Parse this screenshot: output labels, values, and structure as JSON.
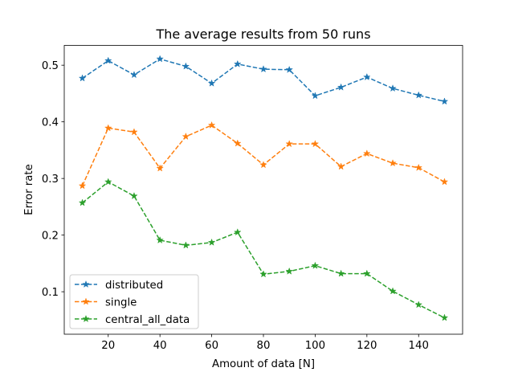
{
  "chart_data": {
    "type": "line",
    "title": "The average results from 50 runs",
    "xlabel": "Amount of data [N]",
    "ylabel": "Error rate",
    "xlim": [
      3,
      157
    ],
    "ylim": [
      0.025,
      0.535
    ],
    "x_ticks": [
      20,
      40,
      60,
      80,
      100,
      120,
      140
    ],
    "x_tick_labels": [
      "20",
      "40",
      "60",
      "80",
      "100",
      "120",
      "140"
    ],
    "y_ticks": [
      0.1,
      0.2,
      0.3,
      0.4,
      0.5
    ],
    "y_tick_labels": [
      "0.1",
      "0.2",
      "0.3",
      "0.4",
      "0.5"
    ],
    "grid": false,
    "legend_position": "lower-left",
    "x": [
      10,
      20,
      30,
      40,
      50,
      60,
      70,
      80,
      90,
      100,
      110,
      120,
      130,
      140,
      150
    ],
    "series": [
      {
        "name": "distributed",
        "color": "#1f77b4",
        "marker": "star",
        "line_style": "dashed",
        "values": [
          0.477,
          0.508,
          0.483,
          0.511,
          0.498,
          0.468,
          0.502,
          0.493,
          0.492,
          0.446,
          0.461,
          0.479,
          0.459,
          0.447,
          0.436
        ]
      },
      {
        "name": "single",
        "color": "#ff7f0e",
        "marker": "star",
        "line_style": "dashed",
        "values": [
          0.287,
          0.389,
          0.382,
          0.318,
          0.374,
          0.394,
          0.362,
          0.324,
          0.361,
          0.361,
          0.321,
          0.344,
          0.327,
          0.319,
          0.294
        ]
      },
      {
        "name": "central_all_data",
        "color": "#2ca02c",
        "marker": "star",
        "line_style": "dashed",
        "values": [
          0.257,
          0.294,
          0.269,
          0.191,
          0.182,
          0.187,
          0.205,
          0.131,
          0.136,
          0.146,
          0.132,
          0.132,
          0.101,
          0.077,
          0.054
        ]
      }
    ]
  }
}
